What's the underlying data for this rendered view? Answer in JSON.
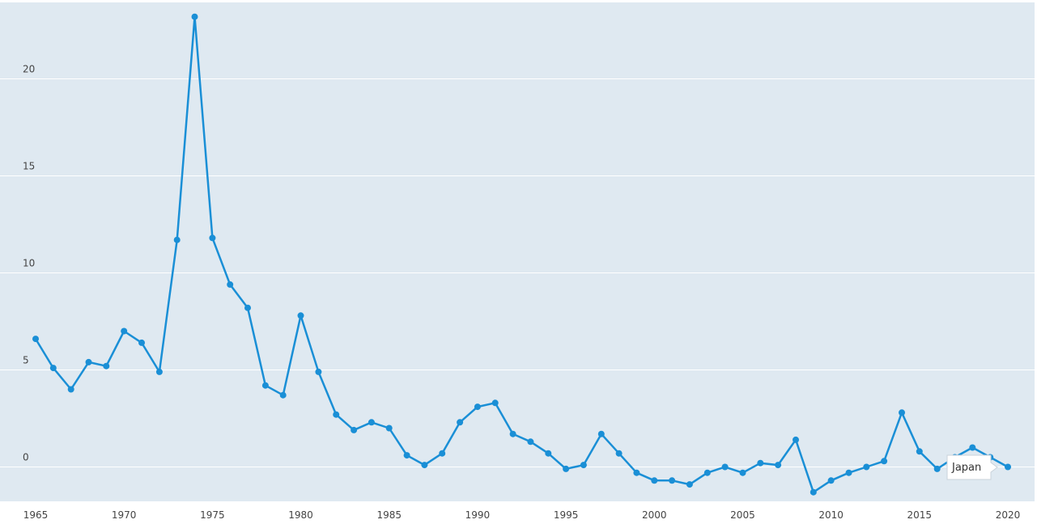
{
  "colors": {
    "plot_background": "#dfe9f1",
    "grid": "#ffffff",
    "series": "#1a8fd6",
    "tooltip_background": "#ffffff",
    "tooltip_border": "#c8d2da"
  },
  "tooltip": {
    "label": "Japan"
  },
  "chart_data": {
    "type": "line",
    "title": "",
    "xlabel": "",
    "ylabel": "",
    "xlim": [
      1964.2,
      2021.1
    ],
    "ylim": [
      -1.8,
      23.8
    ],
    "grid": true,
    "x_ticks": [
      1965,
      1970,
      1975,
      1980,
      1985,
      1990,
      1995,
      2000,
      2005,
      2010,
      2015,
      2020
    ],
    "y_ticks": [
      0,
      5,
      10,
      15,
      20
    ],
    "x_tick_labels": [
      "1965",
      "1970",
      "1975",
      "1980",
      "1985",
      "1990",
      "1995",
      "2000",
      "2005",
      "2010",
      "2015",
      "2020"
    ],
    "y_tick_labels": [
      "0",
      "5",
      "10",
      "15",
      "20"
    ],
    "series": [
      {
        "name": "Japan",
        "x": [
          1965,
          1966,
          1967,
          1968,
          1969,
          1970,
          1971,
          1972,
          1973,
          1974,
          1975,
          1976,
          1977,
          1978,
          1979,
          1980,
          1981,
          1982,
          1983,
          1984,
          1985,
          1986,
          1987,
          1988,
          1989,
          1990,
          1991,
          1992,
          1993,
          1994,
          1995,
          1996,
          1997,
          1998,
          1999,
          2000,
          2001,
          2002,
          2003,
          2004,
          2005,
          2006,
          2007,
          2008,
          2009,
          2010,
          2011,
          2012,
          2013,
          2014,
          2015,
          2016,
          2017,
          2018,
          2019,
          2020
        ],
        "values": [
          6.6,
          5.1,
          4.0,
          5.4,
          5.2,
          7.0,
          6.4,
          4.9,
          11.7,
          23.2,
          11.8,
          9.4,
          8.2,
          4.2,
          3.7,
          7.8,
          4.9,
          2.7,
          1.9,
          2.3,
          2.0,
          0.6,
          0.1,
          0.7,
          2.3,
          3.1,
          3.3,
          1.7,
          1.3,
          0.7,
          -0.1,
          0.1,
          1.7,
          0.7,
          -0.3,
          -0.7,
          -0.7,
          -0.9,
          -0.3,
          0.0,
          -0.3,
          0.2,
          0.1,
          1.4,
          -1.3,
          -0.7,
          -0.3,
          0.0,
          0.3,
          2.8,
          0.8,
          -0.1,
          0.5,
          1.0,
          0.5,
          0.0
        ]
      }
    ]
  }
}
